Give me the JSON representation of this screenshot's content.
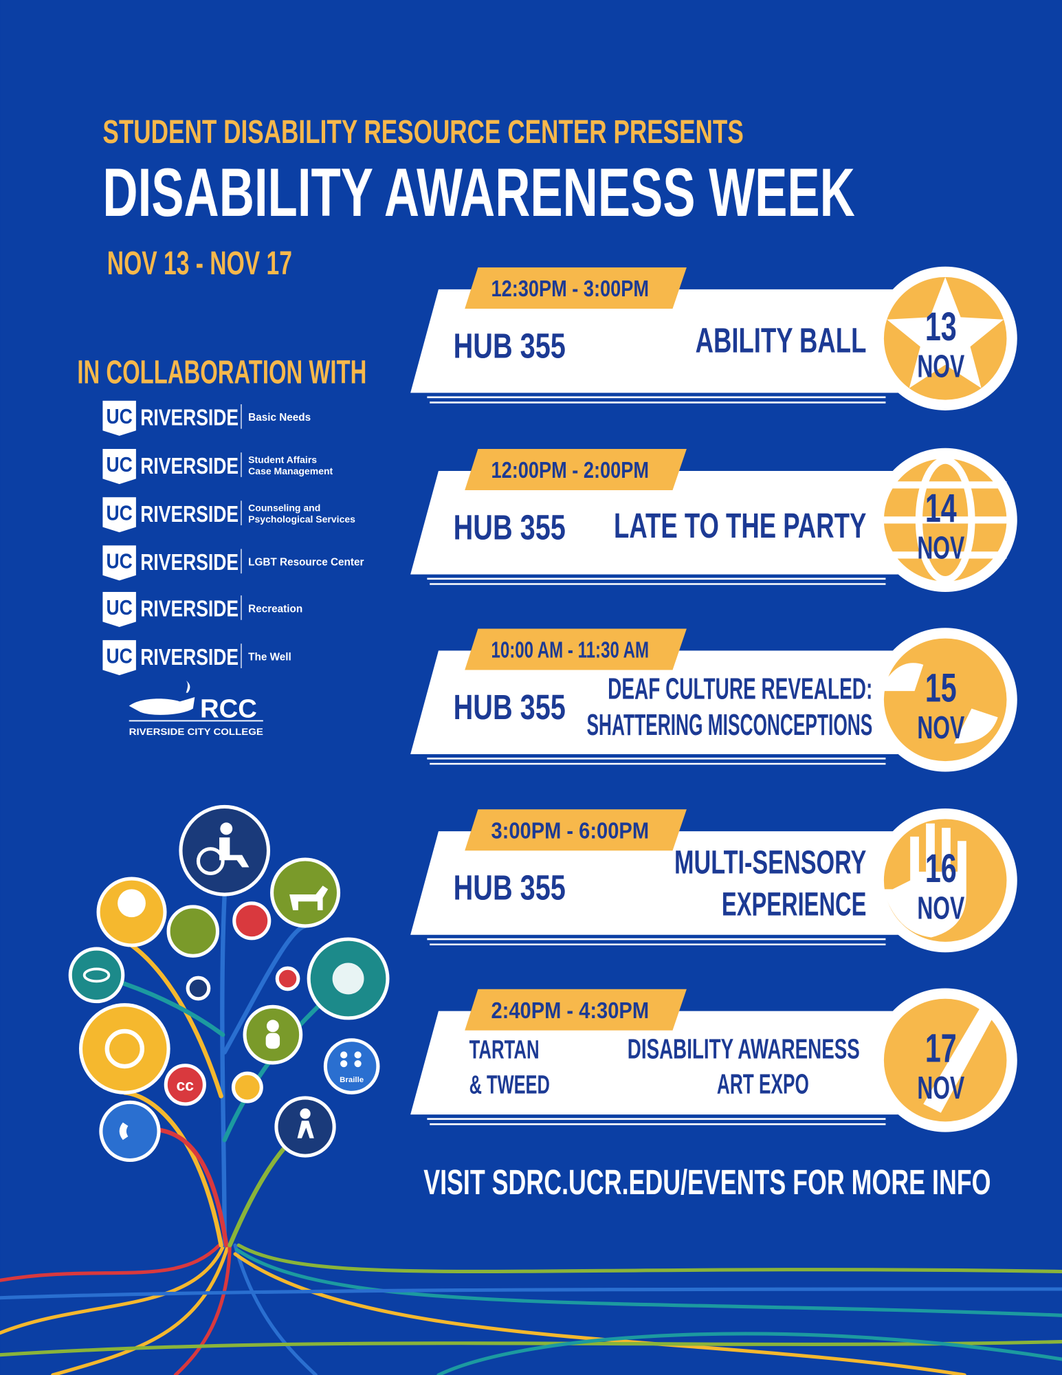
{
  "header": {
    "kicker": "STUDENT DISABILITY RESOURCE CENTER PRESENTS",
    "title": "DISABILITY AWARENESS WEEK",
    "dates": "NOV 13 - NOV 17"
  },
  "collaboration": {
    "heading": "IN COLLABORATION WITH",
    "partners": [
      {
        "mark": "UC",
        "name": "RIVERSIDE",
        "unit": [
          "Basic Needs"
        ]
      },
      {
        "mark": "UC",
        "name": "RIVERSIDE",
        "unit": [
          "Student Affairs",
          "Case Management"
        ]
      },
      {
        "mark": "UC",
        "name": "RIVERSIDE",
        "unit": [
          "Counseling and",
          "Psychological Services"
        ]
      },
      {
        "mark": "UC",
        "name": "RIVERSIDE",
        "unit": [
          "LGBT Resource Center"
        ]
      },
      {
        "mark": "UC",
        "name": "RIVERSIDE",
        "unit": [
          "Recreation"
        ]
      },
      {
        "mark": "UC",
        "name": "RIVERSIDE",
        "unit": [
          "The Well"
        ]
      }
    ],
    "college": {
      "name": "RCC",
      "full": "RIVERSIDE CITY COLLEGE"
    }
  },
  "events": [
    {
      "time": "12:30PM - 3:00PM",
      "location": [
        "HUB 355"
      ],
      "title": [
        "ABILITY BALL"
      ],
      "day": 13,
      "month": "NOV"
    },
    {
      "time": "12:00PM - 2:00PM",
      "location": [
        "HUB 355"
      ],
      "title": [
        "LATE TO THE PARTY"
      ],
      "day": 14,
      "month": "NOV"
    },
    {
      "time": "10:00 AM - 11:30 AM",
      "location": [
        "HUB 355"
      ],
      "title": [
        "DEAF CULTURE REVEALED:",
        "SHATTERING MISCONCEPTIONS"
      ],
      "day": 15,
      "month": "NOV"
    },
    {
      "time": "3:00PM - 6:00PM",
      "location": [
        "HUB 355"
      ],
      "title": [
        "MULTI-SENSORY",
        "EXPERIENCE"
      ],
      "day": 16,
      "month": "NOV"
    },
    {
      "time": "2:40PM - 4:30PM",
      "location": [
        "TARTAN",
        "& TWEED"
      ],
      "title": [
        "DISABILITY AWARENESS",
        "ART EXPO"
      ],
      "day": 17,
      "month": "NOV"
    }
  ],
  "illustration": {
    "labels": [
      "cc",
      "Braille"
    ]
  },
  "footer": "VISIT SDRC.UCR.EDU/EVENTS FOR MORE INFO"
}
